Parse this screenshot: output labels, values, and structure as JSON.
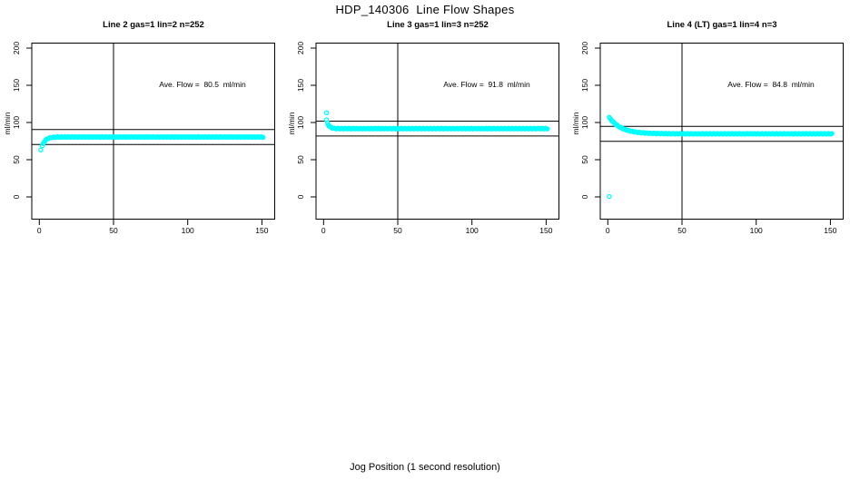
{
  "page": {
    "title": "HDP_140306  Line Flow Shapes",
    "xlabel": "Jog Position (1 second resolution)"
  },
  "colors": {
    "points": "#00FFFF",
    "axis": "#000000",
    "background": "#FFFFFF"
  },
  "chart_data": [
    {
      "type": "scatter",
      "title": "Line 2 gas=1 lin=2 n=252",
      "annotation": "Ave. Flow =  80.5  ml/min",
      "ave_flow_ml_min": 80.5,
      "n_points": 252,
      "ylabel": "ml/min",
      "xticks": [
        0,
        50,
        100,
        150
      ],
      "yticks": [
        0,
        50,
        100,
        150,
        200
      ],
      "xlim": [
        -6,
        159
      ],
      "ylim": [
        -30,
        208
      ],
      "grid": false,
      "ref_lines_y": [
        90.5,
        70.5
      ],
      "vline_x": 50,
      "point_color": "#00FFFF",
      "outliers": [
        [
          1,
          63
        ]
      ],
      "curve": {
        "model": "flat_plus_exp",
        "x_start": 2,
        "x_end": 151,
        "x_step": 0.6,
        "flat": 80.5,
        "amplitude": -12,
        "tau": 2.2
      },
      "key_points": [
        [
          1,
          63
        ],
        [
          2,
          68.5
        ],
        [
          3,
          72.9
        ],
        [
          5,
          77.5
        ],
        [
          7,
          79.2
        ],
        [
          10,
          80.2
        ],
        [
          20,
          80.5
        ],
        [
          50,
          80.5
        ],
        [
          100,
          80.5
        ],
        [
          150,
          80.5
        ]
      ]
    },
    {
      "type": "scatter",
      "title": "Line 3 gas=1 lin=3 n=252",
      "annotation": "Ave. Flow =  91.8  ml/min",
      "ave_flow_ml_min": 91.8,
      "n_points": 252,
      "ylabel": "ml/min",
      "xticks": [
        0,
        50,
        100,
        150
      ],
      "yticks": [
        0,
        50,
        100,
        150,
        200
      ],
      "xlim": [
        -6,
        159
      ],
      "ylim": [
        -30,
        208
      ],
      "grid": false,
      "ref_lines_y": [
        101.8,
        81.8
      ],
      "vline_x": 50,
      "point_color": "#00FFFF",
      "outliers": [
        [
          2,
          113
        ]
      ],
      "curve": {
        "model": "flat_plus_exp",
        "x_start": 2,
        "x_end": 151,
        "x_step": 0.6,
        "flat": 91.8,
        "amplitude": 11.5,
        "tau": 1.5
      },
      "key_points": [
        [
          2,
          113
        ],
        [
          2,
          103.3
        ],
        [
          3,
          97.7
        ],
        [
          5,
          93.4
        ],
        [
          10,
          91.9
        ],
        [
          20,
          91.8
        ],
        [
          50,
          91.8
        ],
        [
          100,
          91.8
        ],
        [
          150,
          91.8
        ]
      ]
    },
    {
      "type": "scatter",
      "title": "Line 4 (LT) gas=1 lin=4 n=3",
      "annotation": "Ave. Flow =  84.8  ml/min",
      "ave_flow_ml_min": 84.8,
      "n_points": 3,
      "ylabel": "ml/min",
      "xticks": [
        0,
        50,
        100,
        150
      ],
      "yticks": [
        0,
        50,
        100,
        150,
        200
      ],
      "xlim": [
        -6,
        159
      ],
      "ylim": [
        -30,
        208
      ],
      "grid": false,
      "ref_lines_y": [
        94.8,
        74.8
      ],
      "vline_x": 50,
      "point_color": "#00FFFF",
      "outliers": [
        [
          1,
          0.5
        ]
      ],
      "curve": {
        "model": "flat_plus_exp",
        "x_start": 1,
        "x_end": 151,
        "x_step": 0.6,
        "flat": 84.8,
        "amplitude": 22,
        "tau": 8
      },
      "key_points": [
        [
          1,
          0.5
        ],
        [
          1,
          106.8
        ],
        [
          3,
          101.9
        ],
        [
          5,
          98.1
        ],
        [
          10,
          91.9
        ],
        [
          15,
          88.7
        ],
        [
          20,
          86.9
        ],
        [
          30,
          85.4
        ],
        [
          50,
          84.9
        ],
        [
          100,
          84.8
        ],
        [
          150,
          84.8
        ]
      ]
    }
  ]
}
